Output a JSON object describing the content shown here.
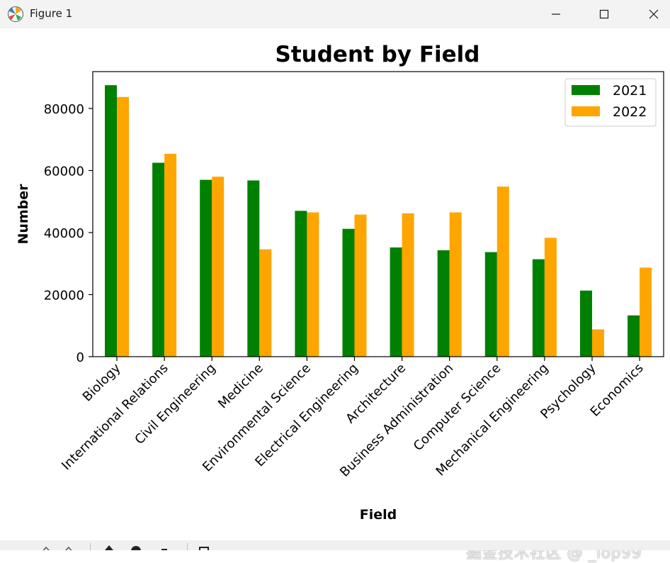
{
  "window": {
    "title": "Figure 1",
    "icons": [
      "matplotlib-logo-icon",
      "minimize-icon",
      "maximize-icon",
      "close-icon"
    ]
  },
  "chart_data": {
    "type": "bar",
    "title": "Student by Field",
    "xlabel": "Field",
    "ylabel": "Number",
    "categories": [
      "Biology",
      "International Relations",
      "Civil Engineering",
      "Medicine",
      "Environmental Science",
      "Electrical Engineering",
      "Architecture",
      "Business Administration",
      "Computer Science",
      "Mechanical Engineering",
      "Psychology",
      "Economics"
    ],
    "series": [
      {
        "name": "2021",
        "color": "#008000",
        "values": [
          87500,
          62500,
          57000,
          56800,
          47000,
          41200,
          35200,
          34300,
          33700,
          31400,
          21300,
          13300
        ]
      },
      {
        "name": "2022",
        "color": "#ffa500",
        "values": [
          83700,
          65400,
          58000,
          34600,
          46500,
          45800,
          46200,
          46500,
          54800,
          38300,
          8800,
          28700
        ]
      }
    ],
    "ylim": [
      0,
      91875
    ],
    "yticks": [
      0,
      20000,
      40000,
      60000,
      80000
    ],
    "ytick_labels": [
      "0",
      "20000",
      "40000",
      "60000",
      "80000"
    ],
    "legend_position": "top-right",
    "grid": false
  },
  "watermark": "掘金技术社区 @ _iop99"
}
